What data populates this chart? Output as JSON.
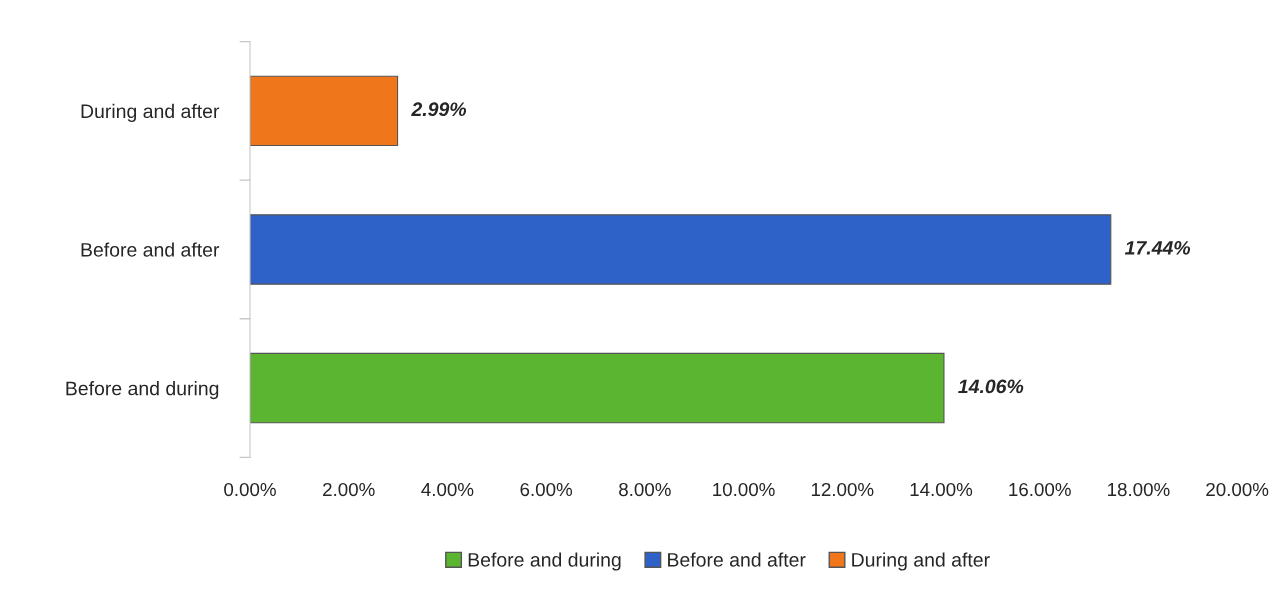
{
  "chart_data": {
    "type": "bar",
    "orientation": "horizontal",
    "stacked": true,
    "categories": [
      "During and after",
      "Before and after",
      "Before and during"
    ],
    "series": [
      {
        "name": "Before and during",
        "color": "#5cb531",
        "values": [
          null,
          null,
          14.06
        ],
        "value_labels": [
          null,
          null,
          "14.06%"
        ]
      },
      {
        "name": "Before and after",
        "color": "#2e62c9",
        "values": [
          null,
          17.44,
          null
        ],
        "value_labels": [
          null,
          "17.44%",
          null
        ]
      },
      {
        "name": "During and after",
        "color": "#f0761c",
        "values": [
          2.99,
          null,
          null
        ],
        "value_labels": [
          "2.99%",
          null,
          null
        ]
      }
    ],
    "xlim": [
      0,
      20
    ],
    "xticks": [
      {
        "value": 0,
        "label": "0.00%"
      },
      {
        "value": 2,
        "label": "2.00%"
      },
      {
        "value": 4,
        "label": "4.00%"
      },
      {
        "value": 6,
        "label": "6.00%"
      },
      {
        "value": 8,
        "label": "8.00%"
      },
      {
        "value": 10,
        "label": "10.00%"
      },
      {
        "value": 12,
        "label": "12.00%"
      },
      {
        "value": 14,
        "label": "14.00%"
      },
      {
        "value": 16,
        "label": "16.00%"
      },
      {
        "value": 18,
        "label": "18.00%"
      },
      {
        "value": 20,
        "label": "20.00%"
      }
    ],
    "grid": false,
    "legend": "bottom"
  }
}
